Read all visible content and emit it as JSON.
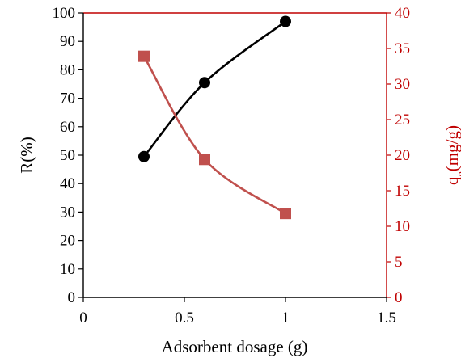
{
  "chart_data": {
    "type": "line",
    "title": "",
    "xlabel": "Adsorbent dosage (g)",
    "ylabel_left": "R(%)",
    "ylabel_right": {
      "base": "q",
      "sub": "e",
      "rest": "(mg/g)"
    },
    "xlim": [
      0,
      1.5
    ],
    "ylim_left": [
      0,
      100
    ],
    "ylim_right": [
      0,
      40
    ],
    "x_ticks": [
      0,
      0.5,
      1,
      1.5
    ],
    "x_tick_labels": [
      "0",
      "0.5",
      "1",
      "1.5"
    ],
    "y_left_ticks": [
      0,
      10,
      20,
      30,
      40,
      50,
      60,
      70,
      80,
      90,
      100
    ],
    "y_left_tick_labels": [
      "0",
      "10",
      "20",
      "30",
      "40",
      "50",
      "60",
      "70",
      "80",
      "90",
      "100"
    ],
    "y_right_ticks": [
      0,
      5,
      10,
      15,
      20,
      25,
      30,
      35,
      40
    ],
    "y_right_tick_labels": [
      "0",
      "5",
      "10",
      "15",
      "20",
      "25",
      "30",
      "35",
      "40"
    ],
    "grid": false,
    "legend": "none",
    "series": [
      {
        "axis": "left",
        "marker": "circle",
        "color": "#000000",
        "x": [
          0.3,
          0.6,
          1.0
        ],
        "values": [
          49.5,
          75.5,
          97
        ]
      },
      {
        "axis": "right",
        "marker": "square",
        "color": "#c0504d",
        "x": [
          0.3,
          0.6,
          1.0
        ],
        "values": [
          33.9,
          19.4,
          11.8
        ]
      }
    ],
    "colors": {
      "left_axis": "#000000",
      "right_axis": "#c00000"
    }
  }
}
